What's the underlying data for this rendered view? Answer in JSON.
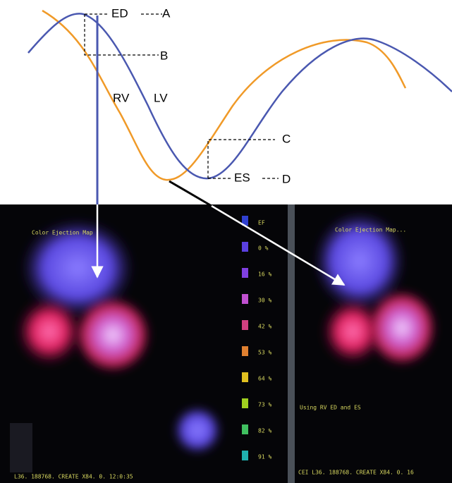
{
  "curve_labels": {
    "ed": "ED",
    "a": "A",
    "b": "B",
    "rv": "RV",
    "lv": "LV",
    "c": "C",
    "es": "ES",
    "d": "D"
  },
  "left_panel": {
    "title": "Color Ejection Map",
    "footer": "L36. 188768. CREATE X84. 0. 12:0:35"
  },
  "right_panel": {
    "title": "Color Ejection Map...",
    "note": "Using RV ED and ES",
    "footer": "CEI L36. 188768. CREATE X84. 0. 16"
  },
  "scale": {
    "header": "EF",
    "labels": [
      "0 %",
      "16 %",
      "30 %",
      "42 %",
      "53 %",
      "64 %",
      "73 %",
      "82 %",
      "91 %"
    ]
  }
}
